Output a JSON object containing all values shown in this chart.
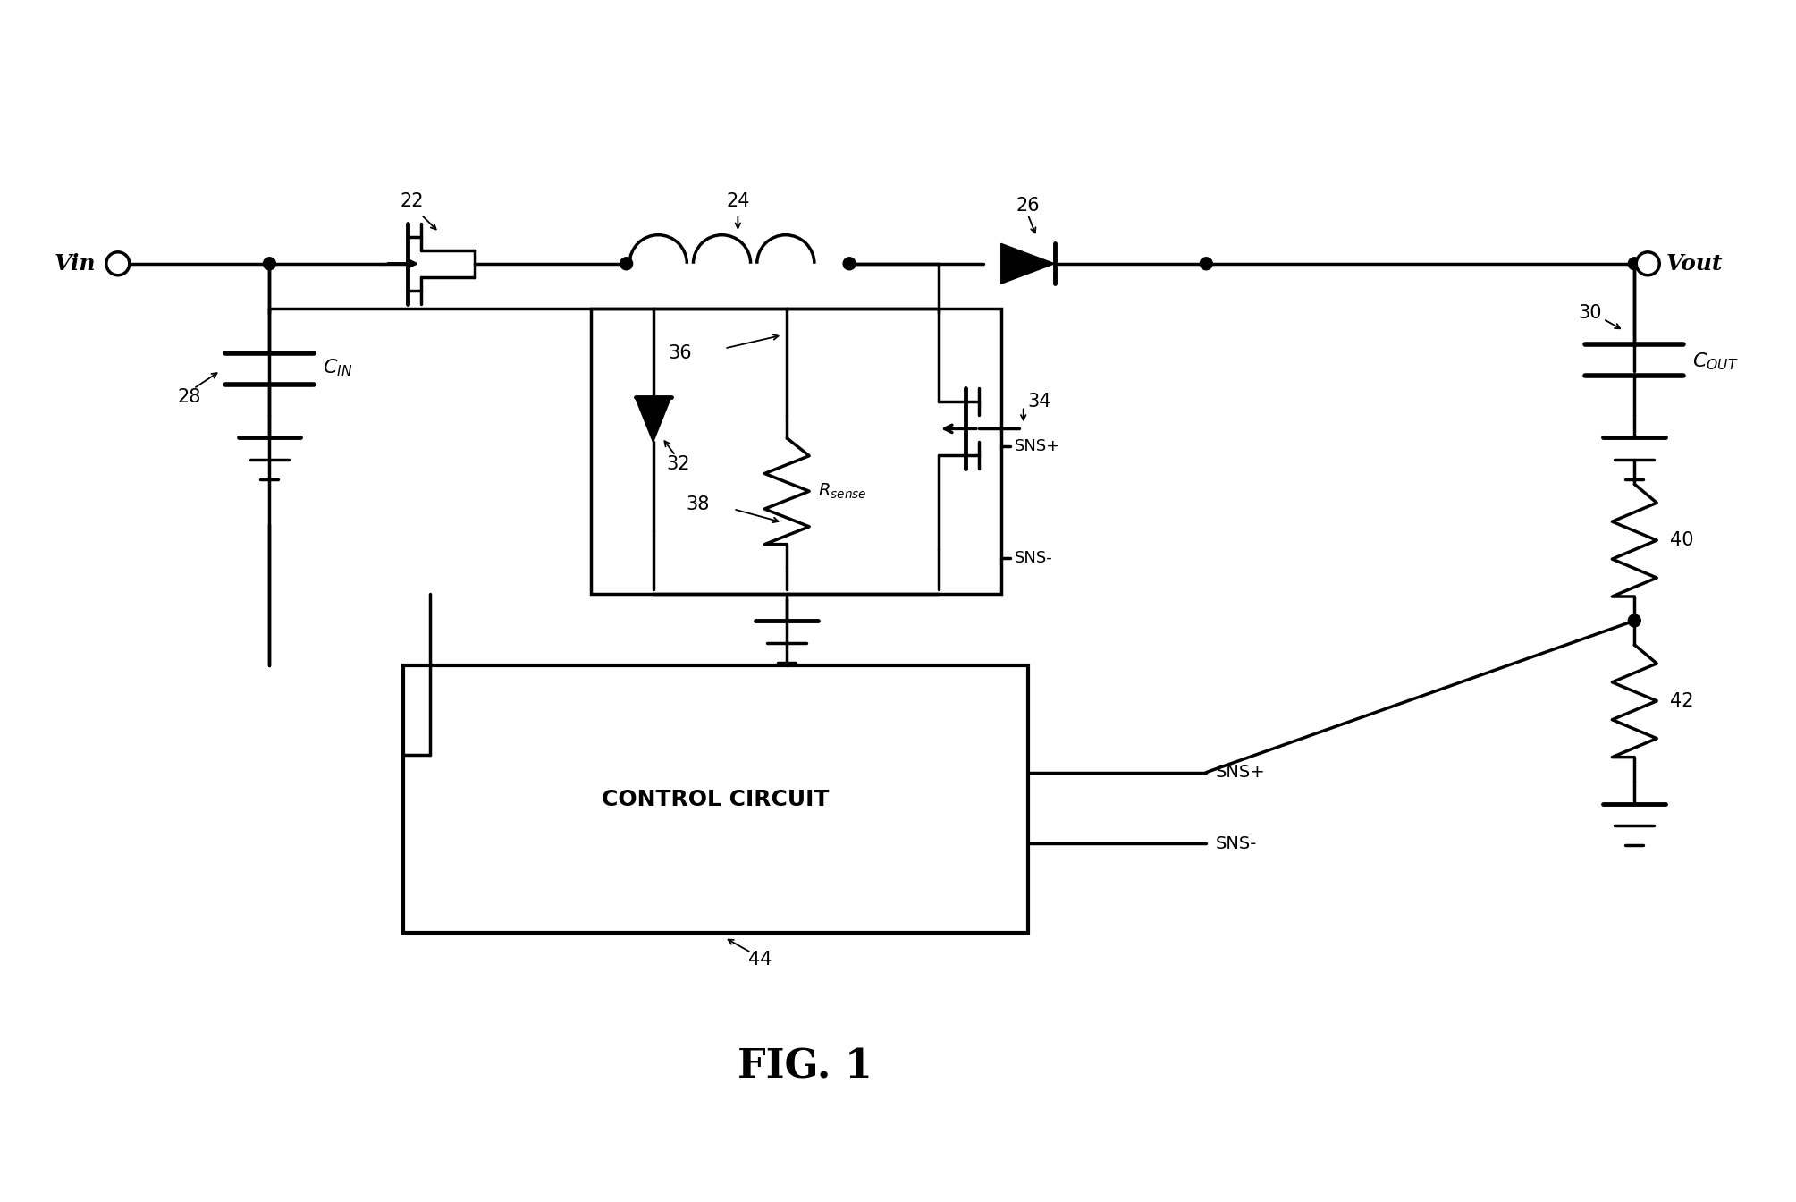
{
  "bg_color": "#ffffff",
  "line_color": "#000000",
  "line_width": 2.5,
  "fig_title": "FIG. 1",
  "components": {
    "Vin_label": "Vin",
    "Vout_label": "Vout",
    "C_IN_label": "C_IN",
    "C_OUT_label": "C_OUT",
    "R_sense_label": "R_sense",
    "control_label": "CONTROL CIRCUIT",
    "sns_plus_top": "SNS+",
    "sns_minus_top": "SNS-",
    "sns_plus_bot": "SNS+",
    "sns_minus_bot": "SNS-",
    "num_22": "22",
    "num_24": "24",
    "num_26": "26",
    "num_28": "28",
    "num_30": "30",
    "num_32": "32",
    "num_34": "34",
    "num_36": "36",
    "num_38": "38",
    "num_40": "40",
    "num_42": "42",
    "num_44": "44"
  }
}
